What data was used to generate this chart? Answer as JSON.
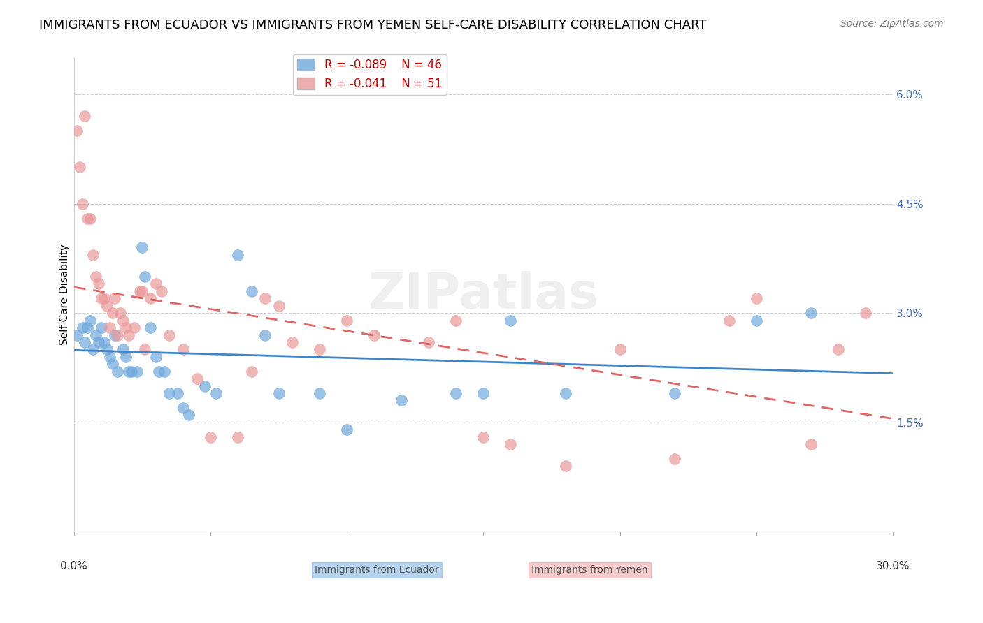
{
  "title": "IMMIGRANTS FROM ECUADOR VS IMMIGRANTS FROM YEMEN SELF-CARE DISABILITY CORRELATION CHART",
  "source": "Source: ZipAtlas.com",
  "ylabel": "Self-Care Disability",
  "right_yticks": [
    0.0,
    0.015,
    0.03,
    0.045,
    0.06
  ],
  "right_yticklabels": [
    "",
    "1.5%",
    "3.0%",
    "4.5%",
    "6.0%"
  ],
  "xlim": [
    0.0,
    0.3
  ],
  "ylim": [
    0.0,
    0.065
  ],
  "ecuador_R": -0.089,
  "ecuador_N": 46,
  "yemen_R": -0.041,
  "yemen_N": 51,
  "ecuador_color": "#6fa8dc",
  "yemen_color": "#ea9999",
  "ecuador_line_color": "#3d85c8",
  "yemen_line_color": "#e06666",
  "title_fontsize": 13,
  "source_fontsize": 10,
  "legend_fontsize": 12,
  "axis_label_fontsize": 11,
  "tick_fontsize": 11,
  "watermark_text": "ZIPatlas",
  "ecuador_x": [
    0.001,
    0.003,
    0.004,
    0.005,
    0.006,
    0.007,
    0.008,
    0.009,
    0.01,
    0.011,
    0.012,
    0.013,
    0.014,
    0.015,
    0.016,
    0.018,
    0.019,
    0.02,
    0.021,
    0.023,
    0.025,
    0.026,
    0.028,
    0.03,
    0.031,
    0.033,
    0.035,
    0.038,
    0.04,
    0.042,
    0.048,
    0.052,
    0.06,
    0.065,
    0.07,
    0.075,
    0.09,
    0.1,
    0.12,
    0.14,
    0.15,
    0.16,
    0.18,
    0.22,
    0.25,
    0.27
  ],
  "ecuador_y": [
    0.027,
    0.028,
    0.026,
    0.028,
    0.029,
    0.025,
    0.027,
    0.026,
    0.028,
    0.026,
    0.025,
    0.024,
    0.023,
    0.027,
    0.022,
    0.025,
    0.024,
    0.022,
    0.022,
    0.022,
    0.039,
    0.035,
    0.028,
    0.024,
    0.022,
    0.022,
    0.019,
    0.019,
    0.017,
    0.016,
    0.02,
    0.019,
    0.038,
    0.033,
    0.027,
    0.019,
    0.019,
    0.014,
    0.018,
    0.019,
    0.019,
    0.029,
    0.019,
    0.019,
    0.029,
    0.03
  ],
  "yemen_x": [
    0.001,
    0.002,
    0.003,
    0.004,
    0.005,
    0.006,
    0.007,
    0.008,
    0.009,
    0.01,
    0.011,
    0.012,
    0.013,
    0.014,
    0.015,
    0.016,
    0.017,
    0.018,
    0.019,
    0.02,
    0.022,
    0.024,
    0.025,
    0.026,
    0.028,
    0.03,
    0.032,
    0.035,
    0.04,
    0.045,
    0.05,
    0.06,
    0.065,
    0.07,
    0.075,
    0.08,
    0.09,
    0.1,
    0.11,
    0.13,
    0.14,
    0.15,
    0.16,
    0.18,
    0.2,
    0.22,
    0.24,
    0.25,
    0.27,
    0.28,
    0.29
  ],
  "yemen_y": [
    0.055,
    0.05,
    0.045,
    0.057,
    0.043,
    0.043,
    0.038,
    0.035,
    0.034,
    0.032,
    0.032,
    0.031,
    0.028,
    0.03,
    0.032,
    0.027,
    0.03,
    0.029,
    0.028,
    0.027,
    0.028,
    0.033,
    0.033,
    0.025,
    0.032,
    0.034,
    0.033,
    0.027,
    0.025,
    0.021,
    0.013,
    0.013,
    0.022,
    0.032,
    0.031,
    0.026,
    0.025,
    0.029,
    0.027,
    0.026,
    0.029,
    0.013,
    0.012,
    0.009,
    0.025,
    0.01,
    0.029,
    0.032,
    0.012,
    0.025,
    0.03
  ]
}
